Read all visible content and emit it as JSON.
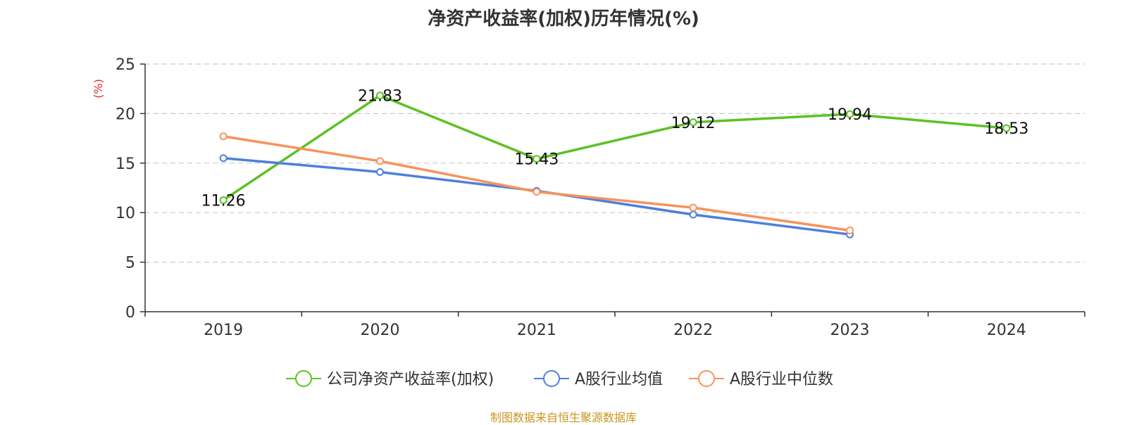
{
  "chart_data": {
    "type": "line",
    "title": "净资产收益率(加权)历年情况(%)",
    "ylabel": "(%)",
    "categories": [
      "2019",
      "2020",
      "2021",
      "2022",
      "2023",
      "2024"
    ],
    "ylim": [
      0,
      25
    ],
    "yticks": [
      0,
      5,
      10,
      15,
      20,
      25
    ],
    "grid": true,
    "legend_position": "bottom",
    "series": [
      {
        "name": "公司净资产收益率(加权)",
        "color": "#5dc122",
        "show_labels": true,
        "values": [
          11.26,
          21.83,
          15.43,
          19.12,
          19.94,
          18.53
        ]
      },
      {
        "name": "A股行业均值",
        "color": "#4f7fde",
        "show_labels": false,
        "values": [
          15.5,
          14.1,
          12.2,
          9.8,
          7.8,
          null
        ]
      },
      {
        "name": "A股行业中位数",
        "color": "#f7935c",
        "show_labels": false,
        "values": [
          17.7,
          15.2,
          12.1,
          10.5,
          8.2,
          null
        ]
      }
    ]
  },
  "footer": {
    "text": "制图数据来自恒生聚源数据库",
    "color": "#c8961e"
  },
  "colors": {
    "axis": "#333333",
    "grid": "#cccccc",
    "ylabel": "#e8272a"
  }
}
